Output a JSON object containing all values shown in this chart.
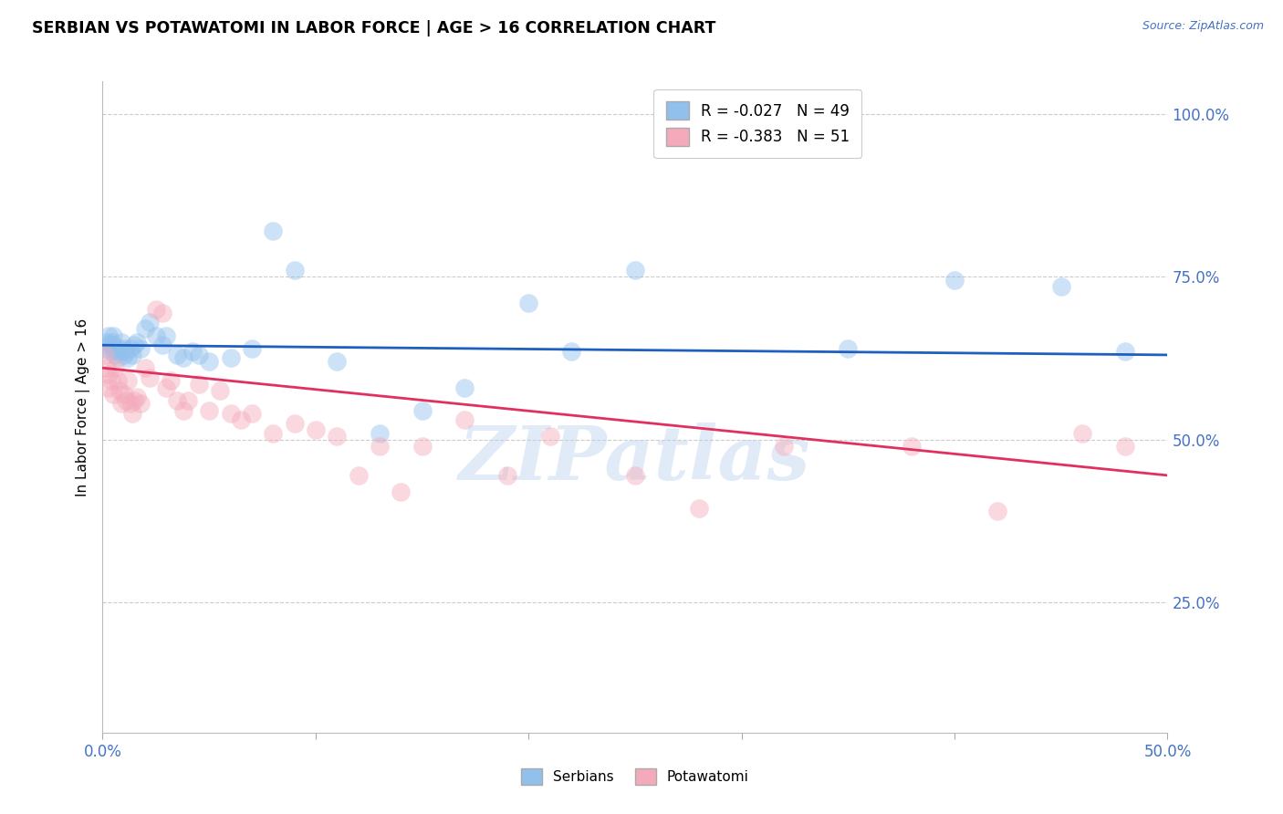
{
  "title": "SERBIAN VS POTAWATOMI IN LABOR FORCE | AGE > 16 CORRELATION CHART",
  "source": "Source: ZipAtlas.com",
  "ylabel": "In Labor Force | Age > 16",
  "ytick_labels": [
    "25.0%",
    "50.0%",
    "75.0%",
    "100.0%"
  ],
  "ytick_values": [
    0.25,
    0.5,
    0.75,
    1.0
  ],
  "xmin": 0.0,
  "xmax": 0.5,
  "ymin": 0.05,
  "ymax": 1.05,
  "legend_serbian": "R = -0.027   N = 49",
  "legend_potawatomi": "R = -0.383   N = 51",
  "color_serbian": "#92C0EC",
  "color_potawatomi": "#F4AABB",
  "line_color_serbian": "#1F5FBF",
  "line_color_potawatomi": "#E03060",
  "watermark": "ZIPatlas",
  "serbian_x": [
    0.001,
    0.002,
    0.003,
    0.003,
    0.004,
    0.004,
    0.005,
    0.005,
    0.006,
    0.006,
    0.007,
    0.007,
    0.008,
    0.009,
    0.01,
    0.01,
    0.011,
    0.012,
    0.013,
    0.014,
    0.015,
    0.016,
    0.018,
    0.02,
    0.022,
    0.025,
    0.028,
    0.03,
    0.035,
    0.038,
    0.042,
    0.045,
    0.05,
    0.06,
    0.07,
    0.08,
    0.09,
    0.11,
    0.13,
    0.15,
    0.17,
    0.2,
    0.22,
    0.25,
    0.28,
    0.35,
    0.4,
    0.45,
    0.48
  ],
  "serbian_y": [
    0.64,
    0.65,
    0.66,
    0.645,
    0.635,
    0.65,
    0.66,
    0.645,
    0.64,
    0.63,
    0.635,
    0.625,
    0.64,
    0.65,
    0.64,
    0.63,
    0.635,
    0.625,
    0.64,
    0.63,
    0.645,
    0.65,
    0.64,
    0.67,
    0.68,
    0.66,
    0.645,
    0.66,
    0.63,
    0.625,
    0.635,
    0.63,
    0.62,
    0.625,
    0.64,
    0.82,
    0.76,
    0.62,
    0.51,
    0.545,
    0.58,
    0.71,
    0.635,
    0.76,
    0.98,
    0.64,
    0.745,
    0.735,
    0.635
  ],
  "potawatomi_x": [
    0.001,
    0.002,
    0.003,
    0.003,
    0.004,
    0.005,
    0.006,
    0.007,
    0.008,
    0.009,
    0.01,
    0.011,
    0.012,
    0.013,
    0.014,
    0.015,
    0.016,
    0.018,
    0.02,
    0.022,
    0.025,
    0.028,
    0.03,
    0.032,
    0.035,
    0.038,
    0.04,
    0.045,
    0.05,
    0.055,
    0.06,
    0.065,
    0.07,
    0.08,
    0.09,
    0.1,
    0.11,
    0.12,
    0.13,
    0.14,
    0.15,
    0.17,
    0.19,
    0.21,
    0.25,
    0.28,
    0.32,
    0.38,
    0.42,
    0.46,
    0.48
  ],
  "potawatomi_y": [
    0.63,
    0.61,
    0.6,
    0.58,
    0.59,
    0.57,
    0.61,
    0.59,
    0.575,
    0.555,
    0.57,
    0.56,
    0.59,
    0.555,
    0.54,
    0.56,
    0.565,
    0.555,
    0.61,
    0.595,
    0.7,
    0.695,
    0.58,
    0.59,
    0.56,
    0.545,
    0.56,
    0.585,
    0.545,
    0.575,
    0.54,
    0.53,
    0.54,
    0.51,
    0.525,
    0.515,
    0.505,
    0.445,
    0.49,
    0.42,
    0.49,
    0.53,
    0.445,
    0.505,
    0.445,
    0.395,
    0.49,
    0.49,
    0.39,
    0.51,
    0.49
  ],
  "serbian_line_x": [
    0.0,
    0.5
  ],
  "serbian_line_y": [
    0.645,
    0.63
  ],
  "potawatomi_line_x": [
    0.0,
    0.5
  ],
  "potawatomi_line_y": [
    0.61,
    0.445
  ]
}
